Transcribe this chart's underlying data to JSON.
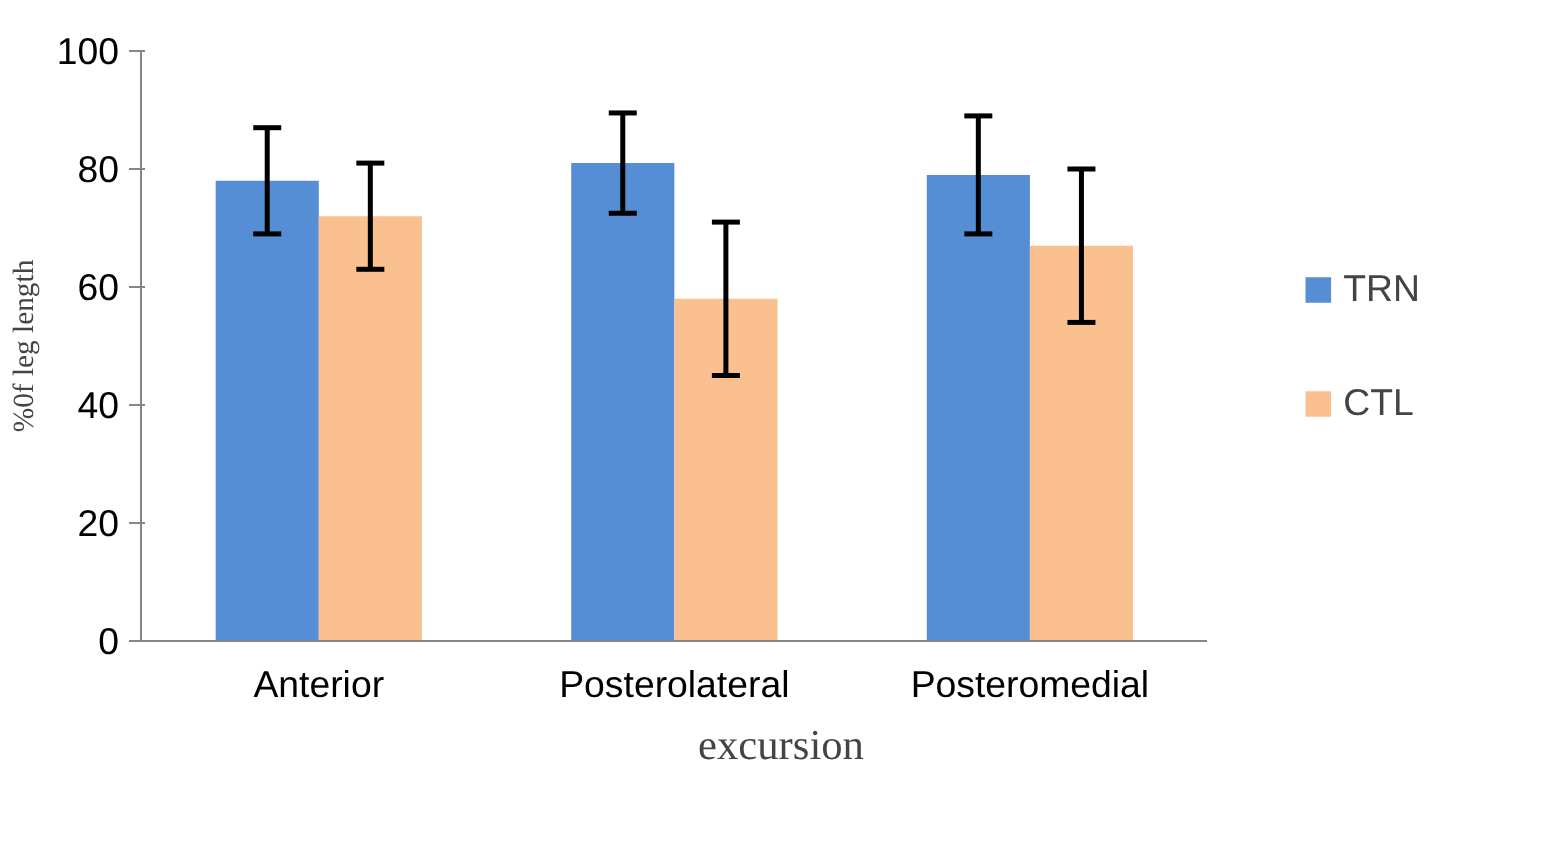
{
  "chart_data": {
    "type": "bar",
    "categories": [
      "Anterior",
      "Posterolateral",
      "Posteromedial"
    ],
    "series": [
      {
        "name": "TRN",
        "color": "#558ed5",
        "values": [
          78,
          81,
          79
        ],
        "errors": [
          9,
          8.5,
          10
        ]
      },
      {
        "name": "CTL",
        "color": "#fac090",
        "values": [
          72,
          58,
          67
        ],
        "errors": [
          9,
          13,
          13
        ]
      }
    ],
    "xlabel": "excursion",
    "ylabel": "%0f leg length",
    "ylim": [
      0,
      100
    ],
    "yticks": [
      0,
      20,
      40,
      60,
      80,
      100
    ],
    "grid": false,
    "legend": "right"
  }
}
